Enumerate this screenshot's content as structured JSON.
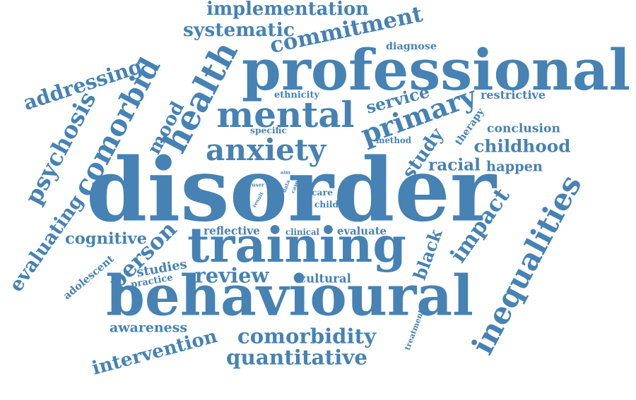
{
  "color": "#4682b4",
  "words": [
    "disorder",
    "professional",
    "behavioural",
    "training",
    "inequalities",
    "anxiety",
    "mental",
    "comorbid",
    "health",
    "primary",
    "psychosis",
    "impact",
    "implementation",
    "commitment",
    "systematic",
    "addressing",
    "intervention",
    "quantitative",
    "comorbidity",
    "review",
    "childhood",
    "study",
    "person",
    "service",
    "evaluating",
    "cognitive",
    "black",
    "racial",
    "mood",
    "conclusion",
    "restrictive",
    "therapy",
    "happen",
    "cultural",
    "awareness",
    "adolescent",
    "studies",
    "practice",
    "reflective",
    "evaluate",
    "diagnose",
    "ethnicity",
    "specific",
    "method",
    "clinical",
    "care",
    "child",
    "treatment",
    "aim",
    "user",
    "data",
    "case",
    "result"
  ]
}
